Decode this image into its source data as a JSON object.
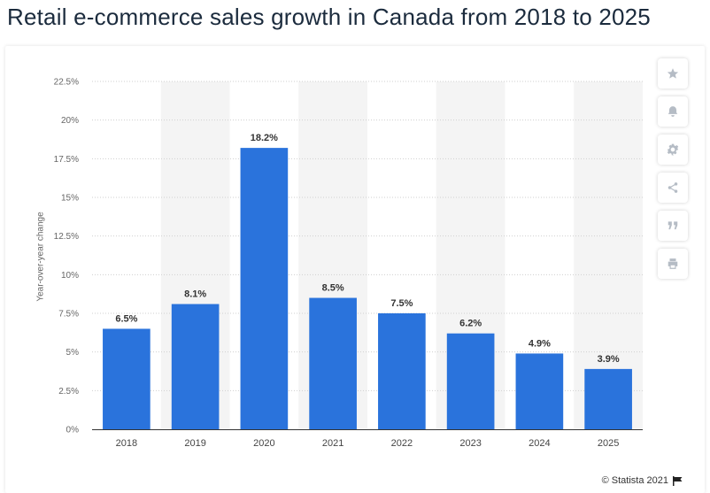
{
  "title": "Retail e-commerce sales growth in Canada from 2018 to 2025",
  "credit": "© Statista 2021",
  "toolbar": [
    "star-icon",
    "bell-icon",
    "gear-icon",
    "share-icon",
    "quote-icon",
    "print-icon"
  ],
  "colors": {
    "bar": "#2a73dc",
    "band": "#f4f4f4",
    "grid": "#cfcfcf",
    "text": "#1b2b3d"
  },
  "chart_data": {
    "type": "bar",
    "categories": [
      "2018",
      "2019",
      "2020",
      "2021",
      "2022",
      "2023",
      "2024",
      "2025"
    ],
    "values": [
      6.5,
      8.1,
      18.2,
      8.5,
      7.5,
      6.2,
      4.9,
      3.9
    ],
    "data_labels": [
      "6.5%",
      "8.1%",
      "18.2%",
      "8.5%",
      "7.5%",
      "6.2%",
      "4.9%",
      "3.9%"
    ],
    "title": "",
    "xlabel": "",
    "ylabel": "Year-over-year change",
    "ylim": [
      0,
      22.5
    ],
    "yticks": [
      0,
      2.5,
      5,
      7.5,
      10,
      12.5,
      15,
      17.5,
      20,
      22.5
    ],
    "ytick_labels": [
      "0%",
      "2.5%",
      "5%",
      "7.5%",
      "10%",
      "12.5%",
      "15%",
      "17.5%",
      "20%",
      "22.5%"
    ],
    "grid": true,
    "legend": "none"
  }
}
